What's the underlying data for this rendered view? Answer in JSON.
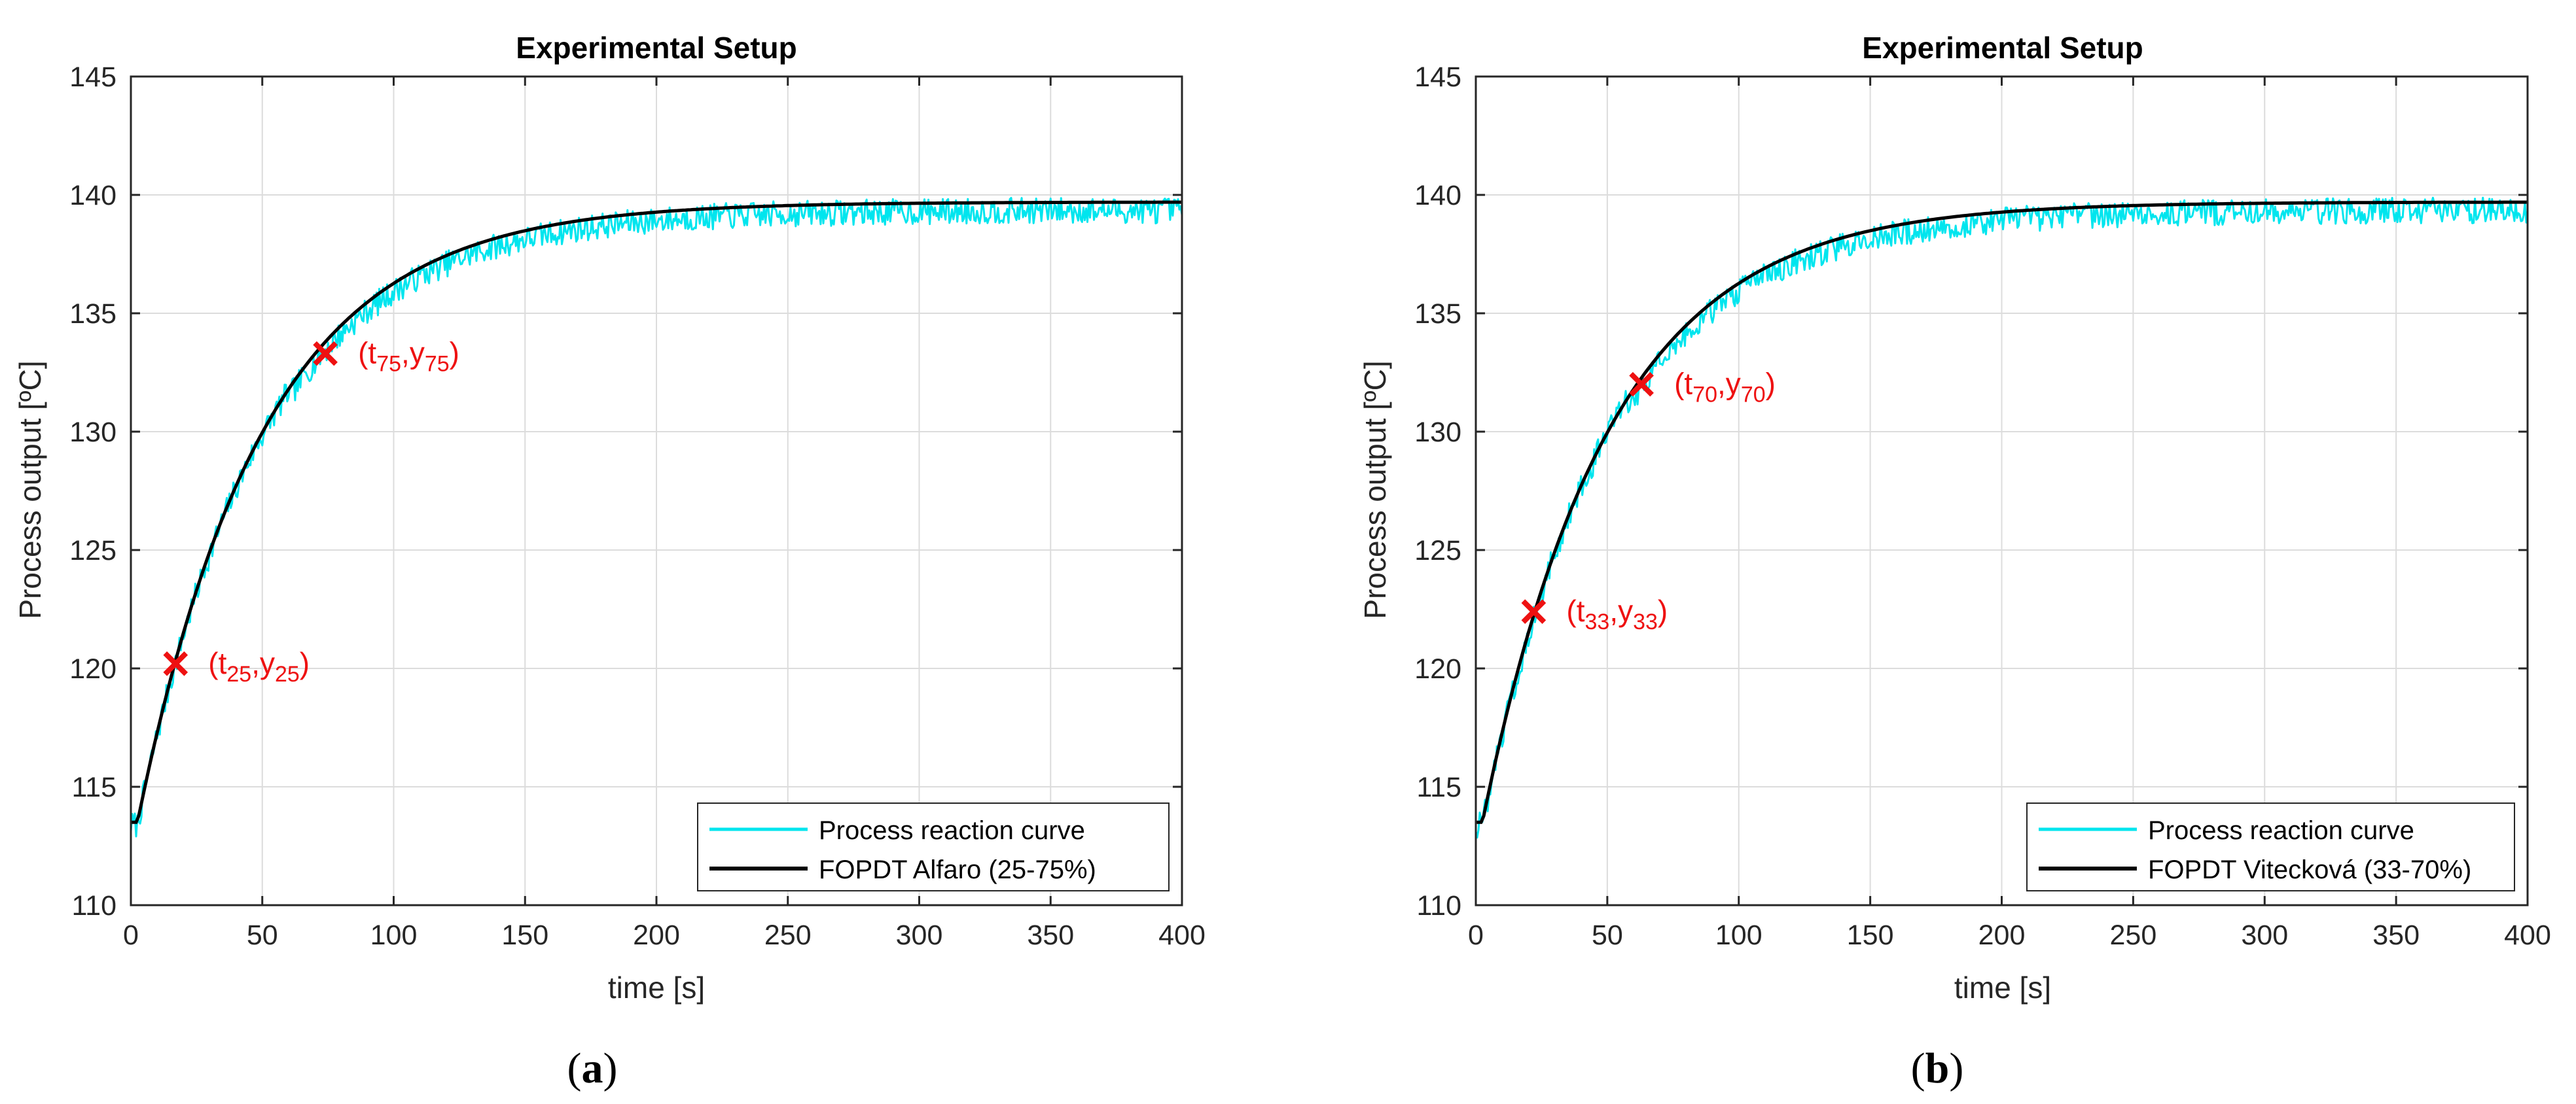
{
  "chart_data": [
    {
      "type": "line",
      "title": "Experimental Setup",
      "xlabel": "time [s]",
      "ylabel": "Process output [ºC]",
      "xlim": [
        0,
        400
      ],
      "ylim": [
        110,
        145
      ],
      "xticks": [
        0,
        50,
        100,
        150,
        200,
        250,
        300,
        350,
        400
      ],
      "yticks": [
        110,
        115,
        120,
        125,
        130,
        135,
        140,
        145
      ],
      "grid": true,
      "legend_position": "bottom-right",
      "model": {
        "y0": 113.5,
        "y_final": 139.7,
        "time_constant": 48,
        "dead_time": 2.5
      },
      "series": [
        {
          "name": "Process reaction curve",
          "color": "#00E5EE",
          "style": "noisy-band"
        },
        {
          "name": "FOPDT Alfaro (25-75%)",
          "color": "#000000",
          "style": "line"
        }
      ],
      "points": [
        {
          "base": "t",
          "sub_t": "25",
          "base_y": "y",
          "sub_y": "25",
          "x": 17,
          "y": 120.2,
          "label_side": "right"
        },
        {
          "base": "t",
          "sub_t": "75",
          "base_y": "y",
          "sub_y": "75",
          "x": 74,
          "y": 133.3,
          "label_side": "right"
        }
      ],
      "panel_label": "a"
    },
    {
      "type": "line",
      "title": "Experimental Setup",
      "xlabel": "time [s]",
      "ylabel": "Process output [ºC]",
      "xlim": [
        0,
        400
      ],
      "ylim": [
        110,
        145
      ],
      "xticks": [
        0,
        50,
        100,
        150,
        200,
        250,
        300,
        350,
        400
      ],
      "yticks": [
        110,
        115,
        120,
        125,
        130,
        135,
        140,
        145
      ],
      "grid": true,
      "legend_position": "bottom-right",
      "model": {
        "y0": 113.5,
        "y_final": 139.7,
        "time_constant": 48,
        "dead_time": 2.5
      },
      "series": [
        {
          "name": "Process reaction curve",
          "color": "#00E5EE",
          "style": "noisy-band"
        },
        {
          "name": "FOPDT Vitecková (33-70%)",
          "color": "#000000",
          "style": "line"
        }
      ],
      "points": [
        {
          "base": "t",
          "sub_t": "33",
          "base_y": "y",
          "sub_y": "33",
          "x": 22,
          "y": 122.4,
          "label_side": "right"
        },
        {
          "base": "t",
          "sub_t": "70",
          "base_y": "y",
          "sub_y": "70",
          "x": 63,
          "y": 132.0,
          "label_side": "right"
        }
      ],
      "panel_label": "b"
    }
  ],
  "colors": {
    "marker": "#EE1111",
    "grid": "#DCDCDC",
    "axis": "#262626"
  }
}
